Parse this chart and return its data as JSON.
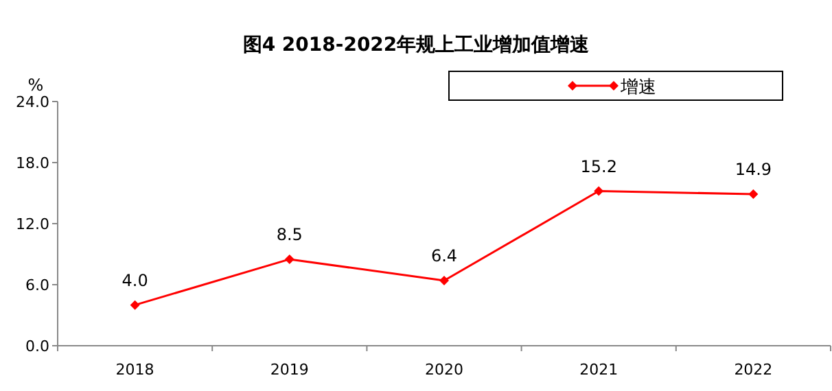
{
  "chart_data": {
    "type": "line",
    "title": "图4 2018-2022年规上工业增加值增速",
    "ylabel": "%",
    "categories": [
      "2018",
      "2019",
      "2020",
      "2021",
      "2022"
    ],
    "series": [
      {
        "name": "增速",
        "color": "#ff0000",
        "values": [
          4.0,
          8.5,
          6.4,
          15.2,
          14.9
        ],
        "value_labels": [
          "4.0",
          "8.5",
          "6.4",
          "15.2",
          "14.9"
        ]
      }
    ],
    "ylim": [
      0,
      24
    ],
    "yticks": [
      {
        "value": 0,
        "label": "0.0"
      },
      {
        "value": 6,
        "label": "6.0"
      },
      {
        "value": 12,
        "label": "12.0"
      },
      {
        "value": 18,
        "label": "18.0"
      },
      {
        "value": 24,
        "label": "24.0"
      }
    ],
    "marker": "diamond",
    "line_style": "solid",
    "legend": "top right",
    "grid": false
  }
}
